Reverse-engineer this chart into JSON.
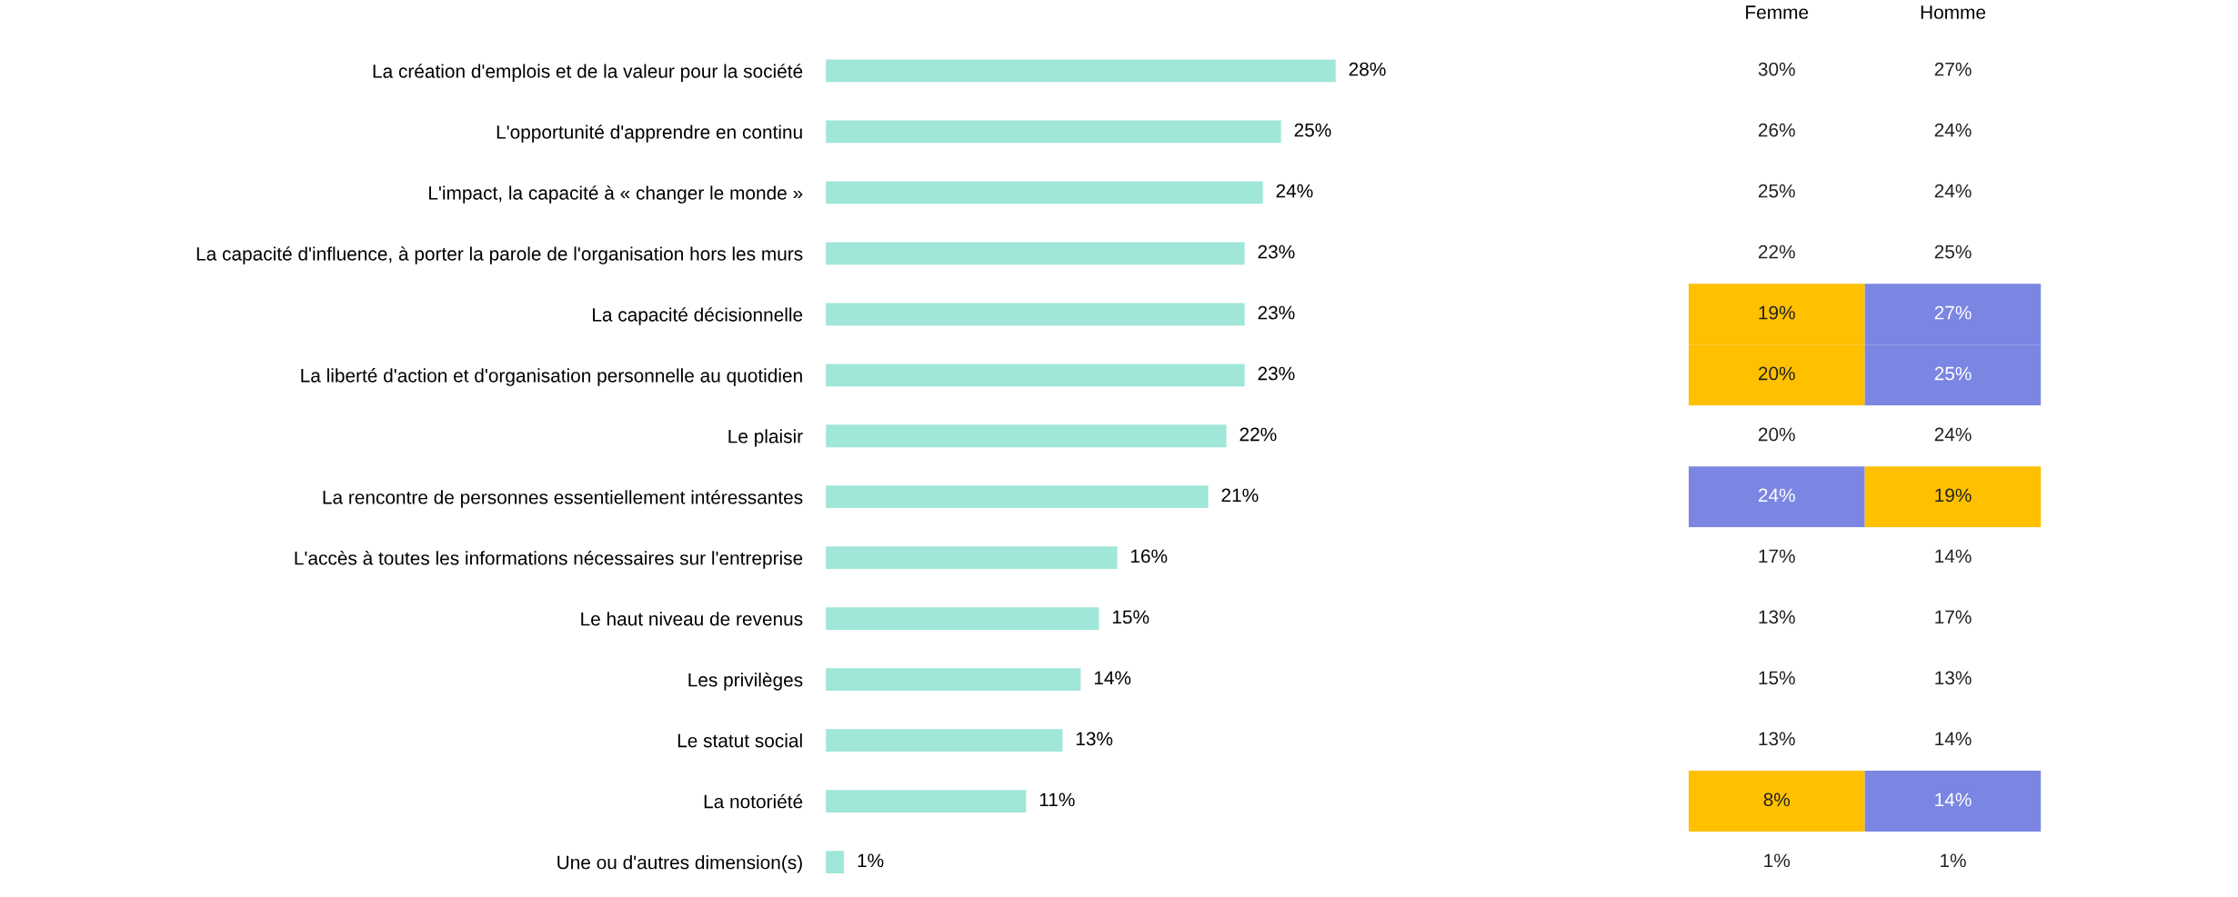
{
  "chart_data": [
    {
      "type": "bar",
      "orientation": "horizontal",
      "categories": [
        "La création d'emplois et de la valeur pour la société",
        "L'opportunité d'apprendre en continu",
        "L'impact, la capacité à « changer le monde »",
        "La capacité d'influence, à porter la parole de l'organisation hors les murs",
        "La capacité décisionnelle",
        "La liberté d'action et d'organisation personnelle au quotidien",
        "Le plaisir",
        "La rencontre de personnes essentiellement intéressantes",
        "L'accès à toutes les informations nécessaires sur l'entreprise",
        "Le haut niveau de revenus",
        "Les privilèges",
        "Le statut social",
        "La notoriété",
        "Une ou d'autres dimension(s)"
      ],
      "values": [
        28,
        25,
        24,
        23,
        23,
        23,
        22,
        21,
        16,
        15,
        14,
        13,
        11,
        1
      ],
      "value_labels": [
        "28%",
        "25%",
        "24%",
        "23%",
        "23%",
        "23%",
        "22%",
        "21%",
        "16%",
        "15%",
        "14%",
        "13%",
        "11%",
        "1%"
      ],
      "color": "#a0e6d9",
      "grid": false,
      "tick_labels": "y"
    },
    {
      "type": "heatmap",
      "categories": [
        "Femme",
        "Homme"
      ],
      "tick_labels": "x",
      "y_categories": [
        null,
        null,
        null,
        null,
        null,
        null,
        null,
        null,
        null,
        null,
        null,
        null,
        null,
        null
      ],
      "cells": [
        [
          30,
          27
        ],
        [
          26,
          24
        ],
        [
          25,
          24
        ],
        [
          22,
          25
        ],
        [
          19,
          27
        ],
        [
          20,
          25
        ],
        [
          20,
          24
        ],
        [
          24,
          19
        ],
        [
          17,
          14
        ],
        [
          13,
          17
        ],
        [
          15,
          13
        ],
        [
          13,
          14
        ],
        [
          8,
          14
        ],
        [
          1,
          1
        ]
      ],
      "cell_labels": [
        [
          "30%",
          "27%"
        ],
        [
          "26%",
          "24%"
        ],
        [
          "25%",
          "24%"
        ],
        [
          "22%",
          "25%"
        ],
        [
          "19%",
          "27%"
        ],
        [
          "20%",
          "25%"
        ],
        [
          "20%",
          "24%"
        ],
        [
          "24%",
          "19%"
        ],
        [
          "17%",
          "14%"
        ],
        [
          "13%",
          "17%"
        ],
        [
          "15%",
          "13%"
        ],
        [
          "13%",
          "14%"
        ],
        [
          "8%",
          "14%"
        ],
        [
          "1%",
          "1%"
        ]
      ],
      "colors": [
        [
          null,
          null
        ],
        [
          null,
          null
        ],
        [
          null,
          null
        ],
        [
          null,
          null
        ],
        [
          "#ffc000",
          "#7b86e3"
        ],
        [
          "#ffc000",
          "#7b86e3"
        ],
        [
          null,
          null
        ],
        [
          "#7b86e3",
          "#ffc000"
        ],
        [
          null,
          null
        ],
        [
          null,
          null
        ],
        [
          null,
          null
        ],
        [
          null,
          null
        ],
        [
          "#ffc000",
          "#7b86e3"
        ],
        [
          null,
          null
        ]
      ]
    }
  ]
}
